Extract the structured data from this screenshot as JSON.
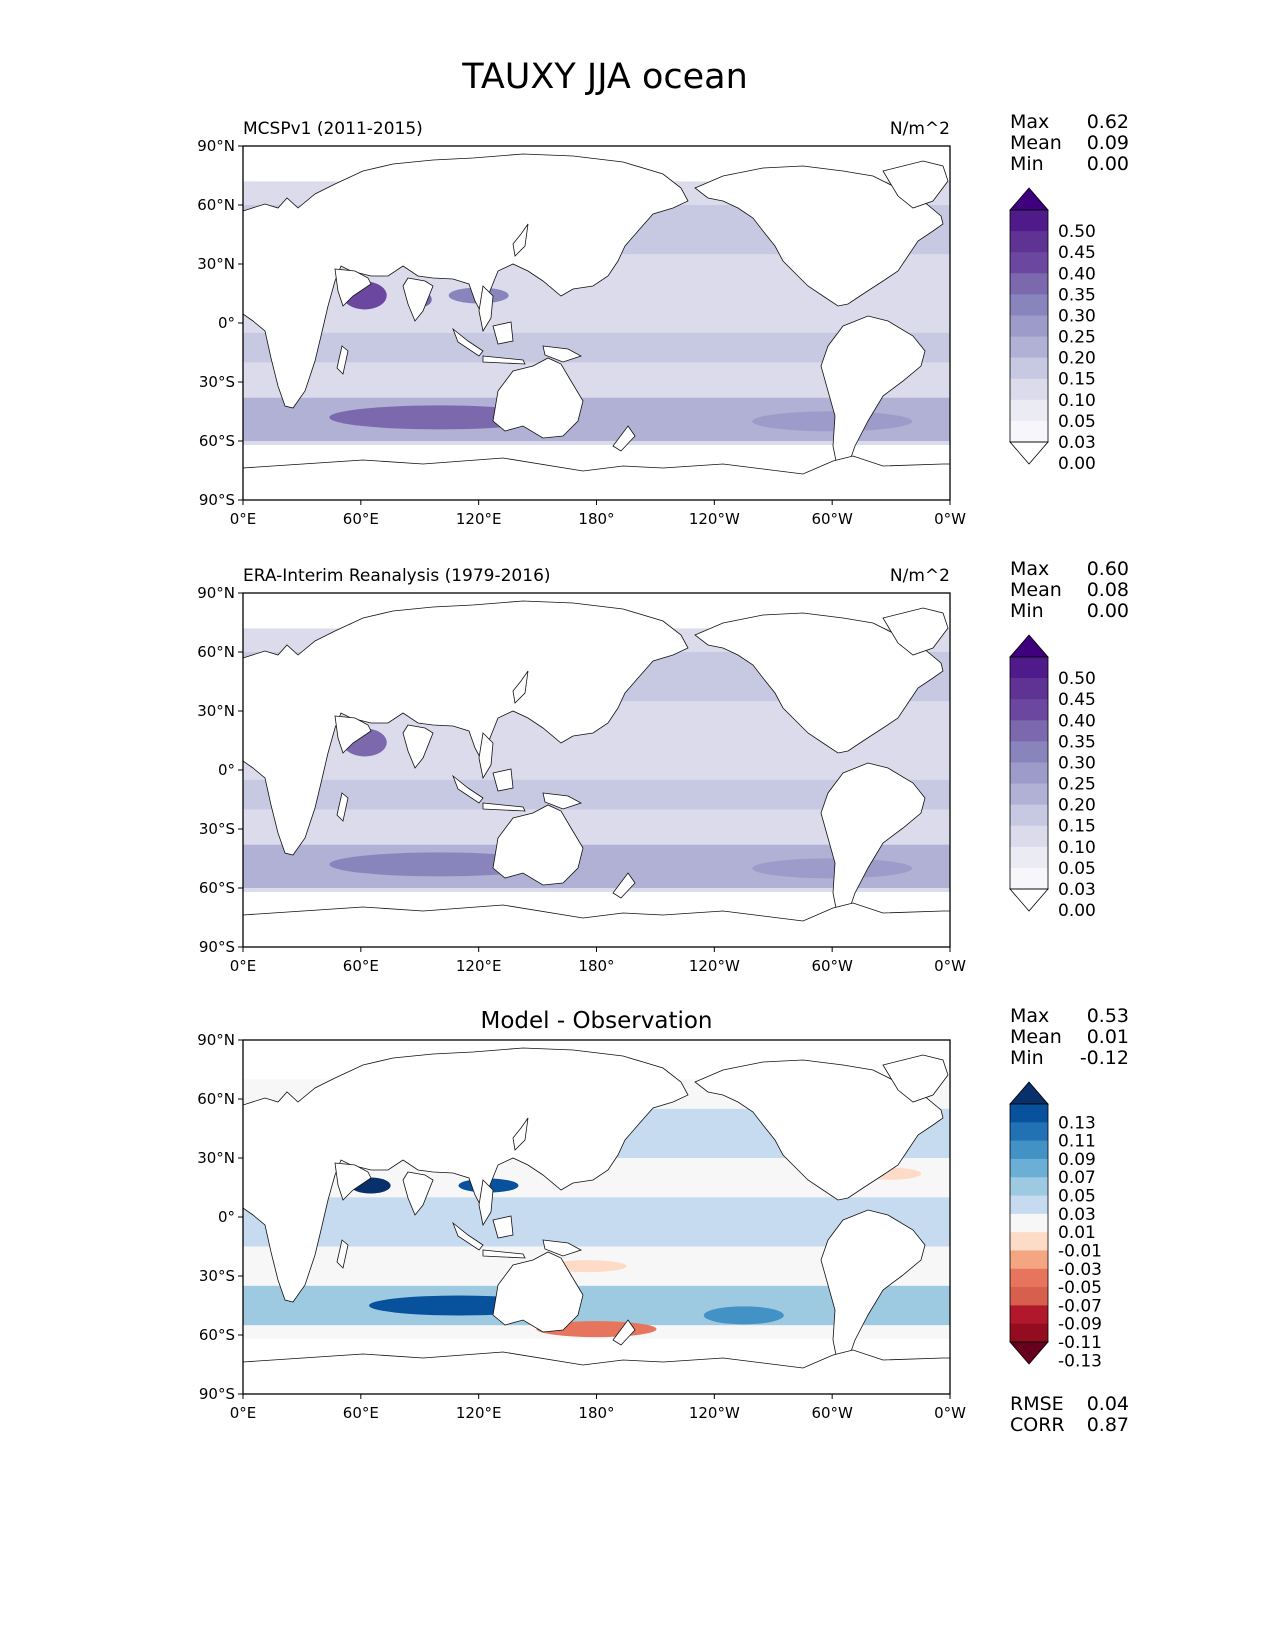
{
  "figure": {
    "title": "TAUXY JJA ocean"
  },
  "chart_data": [
    {
      "type": "heatmap",
      "name": "model",
      "title": "MCSPv1 (2011-2015)",
      "units": "N/m^2",
      "stats": [
        {
          "label": "Max",
          "value": "0.62"
        },
        {
          "label": "Mean",
          "value": "0.09"
        },
        {
          "label": "Min",
          "value": "0.00"
        }
      ],
      "colorbar": {
        "levels": [
          "0.50",
          "0.45",
          "0.40",
          "0.35",
          "0.30",
          "0.25",
          "0.20",
          "0.15",
          "0.10",
          "0.05",
          "0.03",
          "0.00"
        ],
        "colors": [
          "#3f007d",
          "#4f1a89",
          "#5e3394",
          "#6b479f",
          "#7b68ad",
          "#8a84bc",
          "#9c9bc9",
          "#b0b1d4",
          "#c7c8e2",
          "#dbdbec",
          "#ebebf4",
          "#f7f6fa",
          "#ffffff"
        ]
      },
      "xlim": [
        0,
        360
      ],
      "ylim": [
        -90,
        90
      ],
      "xticks": [
        "0°E",
        "60°E",
        "120°E",
        "180°",
        "120°W",
        "60°W",
        "0°W"
      ],
      "yticks": [
        "90°N",
        "60°N",
        "30°N",
        "0°",
        "30°S",
        "60°S",
        "90°S"
      ]
    },
    {
      "type": "heatmap",
      "name": "observation",
      "title": "ERA-Interim Reanalysis (1979-2016)",
      "units": "N/m^2",
      "stats": [
        {
          "label": "Max",
          "value": "0.60"
        },
        {
          "label": "Mean",
          "value": "0.08"
        },
        {
          "label": "Min",
          "value": "0.00"
        }
      ],
      "colorbar": {
        "levels": [
          "0.50",
          "0.45",
          "0.40",
          "0.35",
          "0.30",
          "0.25",
          "0.20",
          "0.15",
          "0.10",
          "0.05",
          "0.03",
          "0.00"
        ],
        "colors": [
          "#3f007d",
          "#4f1a89",
          "#5e3394",
          "#6b479f",
          "#7b68ad",
          "#8a84bc",
          "#9c9bc9",
          "#b0b1d4",
          "#c7c8e2",
          "#dbdbec",
          "#ebebf4",
          "#f7f6fa",
          "#ffffff"
        ]
      },
      "xlim": [
        0,
        360
      ],
      "ylim": [
        -90,
        90
      ],
      "xticks": [
        "0°E",
        "60°E",
        "120°E",
        "180°",
        "120°W",
        "60°W",
        "0°W"
      ],
      "yticks": [
        "90°N",
        "60°N",
        "30°N",
        "0°",
        "30°S",
        "60°S",
        "90°S"
      ]
    },
    {
      "type": "heatmap",
      "name": "difference",
      "title": "Model - Observation",
      "stats": [
        {
          "label": "Max",
          "value": "0.53"
        },
        {
          "label": "Mean",
          "value": "0.01"
        },
        {
          "label": "Min",
          "value": "-0.12"
        }
      ],
      "extra_stats": [
        {
          "label": "RMSE",
          "value": "0.04"
        },
        {
          "label": "CORR",
          "value": "0.87"
        }
      ],
      "colorbar": {
        "levels": [
          "0.13",
          "0.11",
          "0.09",
          "0.07",
          "0.05",
          "0.03",
          "0.01",
          "-0.01",
          "-0.03",
          "-0.05",
          "-0.07",
          "-0.09",
          "-0.11",
          "-0.13"
        ],
        "colors": [
          "#08306b",
          "#08519c",
          "#2171b5",
          "#4292c6",
          "#6baed6",
          "#9ecae1",
          "#c6dbef",
          "#f7f7f7",
          "#fddbc7",
          "#f4a582",
          "#e7755d",
          "#d6604d",
          "#b2182b",
          "#940c20",
          "#67001f"
        ]
      },
      "xlim": [
        0,
        360
      ],
      "ylim": [
        -90,
        90
      ],
      "xticks": [
        "0°E",
        "60°E",
        "120°E",
        "180°",
        "120°W",
        "60°W",
        "0°W"
      ],
      "yticks": [
        "90°N",
        "60°N",
        "30°N",
        "0°",
        "30°S",
        "60°S",
        "90°S"
      ]
    }
  ]
}
